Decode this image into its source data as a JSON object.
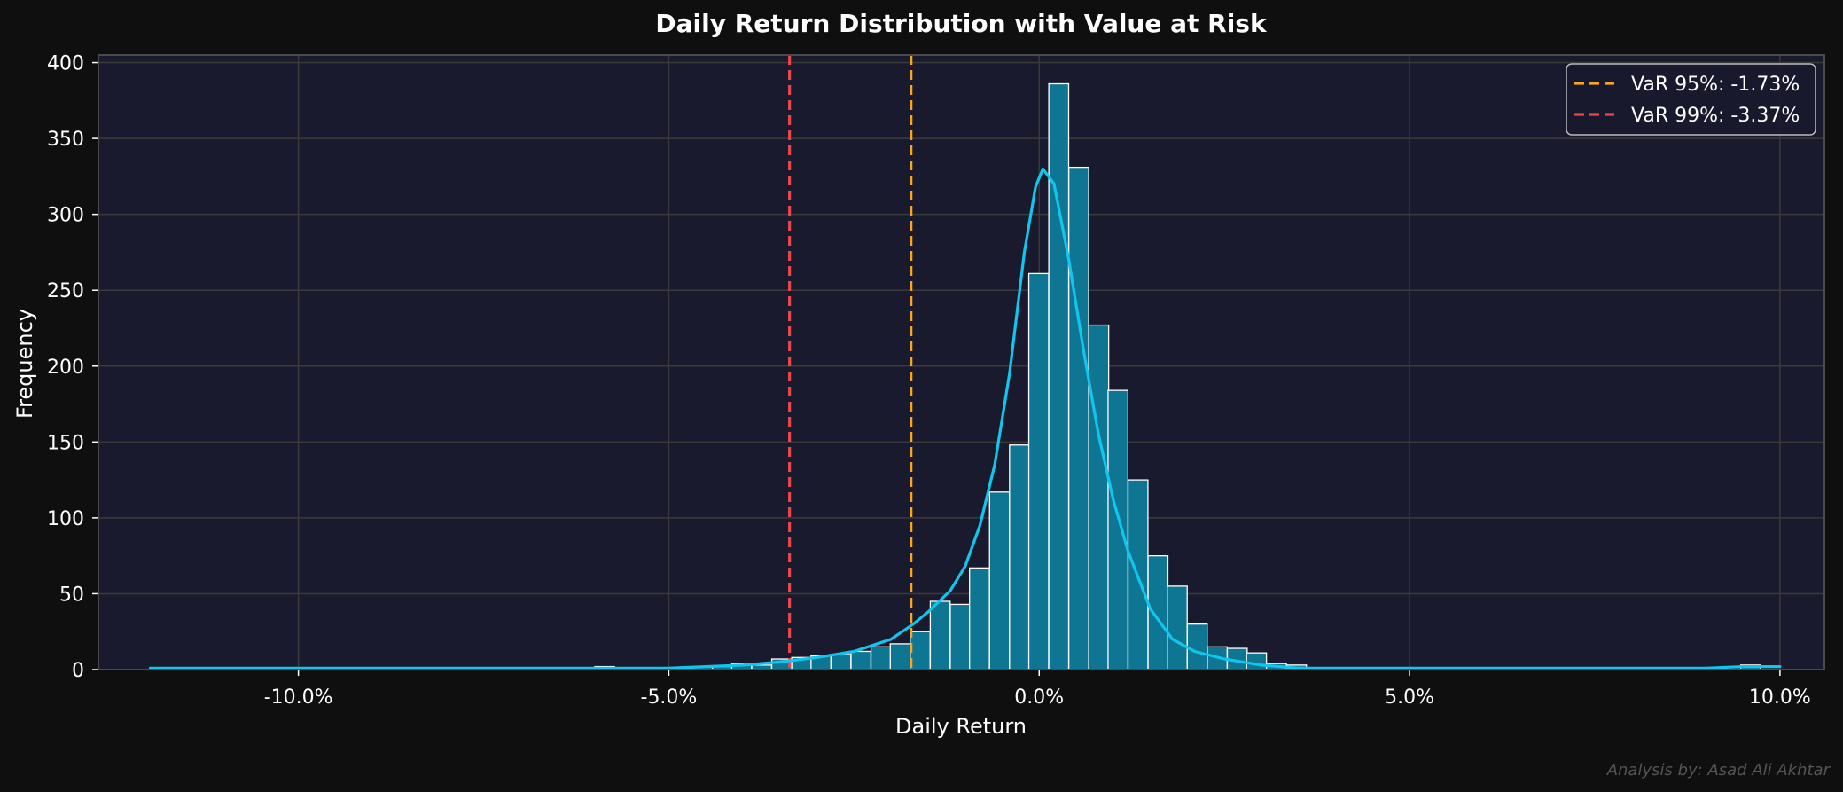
{
  "chart_data": {
    "type": "histogram",
    "title": "Daily Return Distribution with Value at Risk",
    "xlabel": "Daily Return",
    "ylabel": "Frequency",
    "xlim": [
      -12.7,
      10.6
    ],
    "ylim": [
      0,
      405
    ],
    "x_ticks": [
      -10,
      -5,
      0,
      5,
      10
    ],
    "x_tick_labels": [
      "-10.0%",
      "-5.0%",
      "0.0%",
      "5.0%",
      "10.0%"
    ],
    "y_ticks": [
      0,
      50,
      100,
      150,
      200,
      250,
      300,
      350,
      400
    ],
    "y_tick_labels": [
      "0",
      "50",
      "100",
      "150",
      "200",
      "250",
      "300",
      "350",
      "400"
    ],
    "grid": true,
    "legend_position": "top-right",
    "bin_width": 0.268,
    "bins": [
      {
        "x": -11.84,
        "count": 1
      },
      {
        "x": -10.5,
        "count": 1
      },
      {
        "x": -8.9,
        "count": 1
      },
      {
        "x": -6.0,
        "count": 2
      },
      {
        "x": -5.2,
        "count": 1
      },
      {
        "x": -4.68,
        "count": 2
      },
      {
        "x": -4.41,
        "count": 2
      },
      {
        "x": -4.15,
        "count": 4
      },
      {
        "x": -3.88,
        "count": 3
      },
      {
        "x": -3.61,
        "count": 7
      },
      {
        "x": -3.34,
        "count": 8
      },
      {
        "x": -3.08,
        "count": 9
      },
      {
        "x": -2.81,
        "count": 10
      },
      {
        "x": -2.54,
        "count": 12
      },
      {
        "x": -2.27,
        "count": 15
      },
      {
        "x": -2.01,
        "count": 17
      },
      {
        "x": -1.74,
        "count": 25
      },
      {
        "x": -1.47,
        "count": 45
      },
      {
        "x": -1.2,
        "count": 43
      },
      {
        "x": -0.94,
        "count": 67
      },
      {
        "x": -0.67,
        "count": 117
      },
      {
        "x": -0.4,
        "count": 148
      },
      {
        "x": -0.14,
        "count": 261
      },
      {
        "x": 0.13,
        "count": 386
      },
      {
        "x": 0.4,
        "count": 331
      },
      {
        "x": 0.67,
        "count": 227
      },
      {
        "x": 0.93,
        "count": 184
      },
      {
        "x": 1.2,
        "count": 125
      },
      {
        "x": 1.47,
        "count": 75
      },
      {
        "x": 1.73,
        "count": 55
      },
      {
        "x": 2.0,
        "count": 30
      },
      {
        "x": 2.27,
        "count": 15
      },
      {
        "x": 2.54,
        "count": 14
      },
      {
        "x": 2.8,
        "count": 11
      },
      {
        "x": 3.07,
        "count": 4
      },
      {
        "x": 3.34,
        "count": 3
      },
      {
        "x": 3.61,
        "count": 1
      },
      {
        "x": 9.47,
        "count": 3
      }
    ],
    "kde": {
      "x": [
        -12.0,
        -10.0,
        -8.0,
        -6.5,
        -5.5,
        -5.0,
        -4.5,
        -4.0,
        -3.5,
        -3.0,
        -2.5,
        -2.0,
        -1.7,
        -1.5,
        -1.2,
        -1.0,
        -0.8,
        -0.6,
        -0.4,
        -0.2,
        -0.05,
        0.05,
        0.2,
        0.4,
        0.6,
        0.8,
        1.0,
        1.2,
        1.5,
        1.8,
        2.1,
        2.5,
        3.0,
        3.5,
        4.0,
        5.0,
        6.0,
        7.0,
        8.0,
        9.0,
        9.5,
        10.0
      ],
      "y": [
        1,
        1,
        1,
        1,
        1,
        1,
        2,
        3,
        5,
        8,
        12,
        20,
        30,
        38,
        52,
        68,
        95,
        135,
        195,
        275,
        318,
        330,
        320,
        270,
        210,
        155,
        112,
        78,
        40,
        20,
        12,
        7,
        3,
        1,
        1,
        1,
        1,
        1,
        1,
        1,
        2,
        2
      ]
    },
    "var_lines": [
      {
        "label": "VaR 95%: -1.73%",
        "value": -1.73,
        "color": "#f5a623"
      },
      {
        "label": "VaR 99%: -3.37%",
        "value": -3.37,
        "color": "#e8484a"
      }
    ],
    "colors": {
      "bar_fill": "#0e7592",
      "bar_edge": "#ffffff",
      "kde_line": "#12c5ec",
      "plot_bg": "#1a1a2e",
      "page_bg": "#0f0f0f",
      "grid": "#3a3a3a"
    }
  },
  "footer": {
    "credit": "Analysis by: Asad Ali Akhtar"
  }
}
